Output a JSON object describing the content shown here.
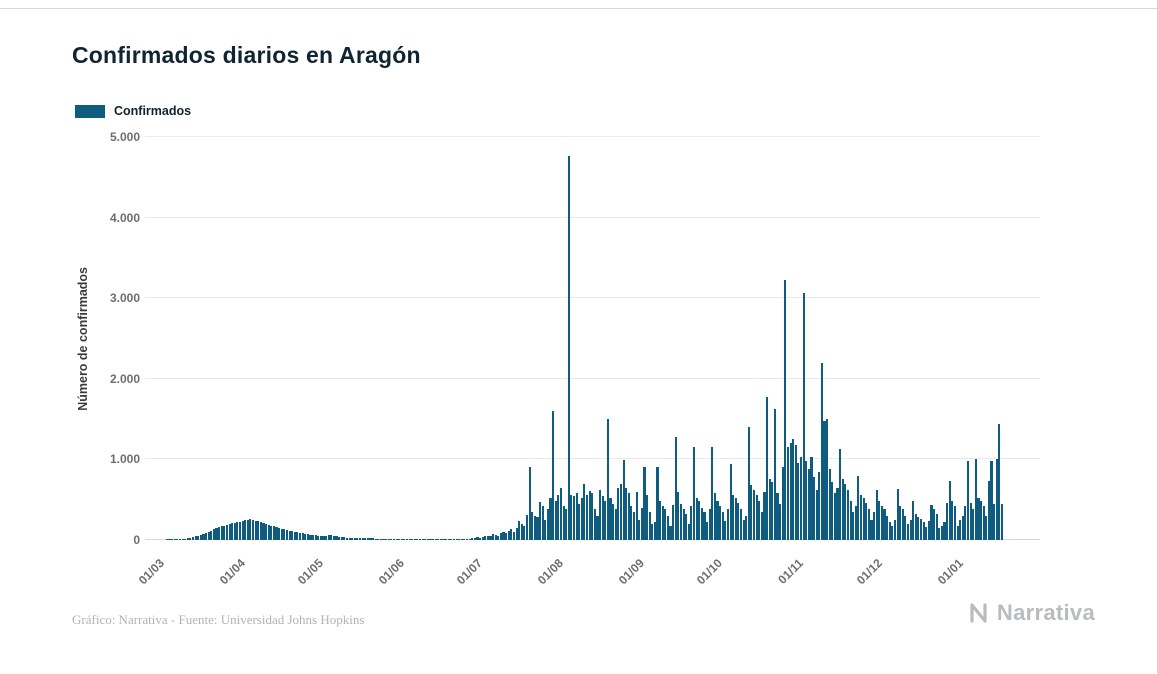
{
  "page": {
    "title": "Confirmados diarios en Aragón",
    "credit": "Gráfico: Narrativa - Fuente: Universidad Johns Hopkins",
    "brand": "Narrativa"
  },
  "legend": {
    "label": "Confirmados",
    "color": "#0e5c80"
  },
  "chart_data": {
    "type": "bar",
    "title": "Confirmados diarios en Aragón",
    "xlabel": "",
    "ylabel": "Número de confirmados",
    "ylim": [
      0,
      5000
    ],
    "grid": "horizontal",
    "legend_position": "top-left",
    "ytick_labels": [
      "0",
      "1.000",
      "2.000",
      "3.000",
      "4.000",
      "5.000"
    ],
    "xtick_labels": [
      "01/03",
      "01/04",
      "01/05",
      "01/06",
      "01/07",
      "01/08",
      "01/09",
      "01/10",
      "01/11",
      "01/12",
      "01/01"
    ],
    "xtick_positions": [
      5,
      36,
      66,
      97,
      127,
      158,
      189,
      219,
      250,
      280,
      311
    ],
    "x_start_date": "25/02",
    "x_unit": "day",
    "series": [
      {
        "name": "Confirmados",
        "color": "#0e5c80",
        "values": [
          0,
          0,
          0,
          0,
          0,
          0,
          0,
          0,
          1,
          2,
          3,
          5,
          8,
          10,
          14,
          18,
          24,
          30,
          38,
          46,
          56,
          66,
          78,
          90,
          104,
          118,
          132,
          146,
          158,
          168,
          178,
          188,
          198,
          206,
          214,
          220,
          228,
          236,
          244,
          250,
          255,
          248,
          240,
          232,
          222,
          212,
          200,
          190,
          180,
          170,
          160,
          150,
          142,
          134,
          126,
          118,
          110,
          102,
          96,
          90,
          84,
          78,
          72,
          68,
          64,
          60,
          56,
          52,
          48,
          46,
          58,
          64,
          52,
          44,
          40,
          36,
          34,
          30,
          28,
          26,
          24,
          22,
          20,
          24,
          30,
          26,
          22,
          20,
          18,
          16,
          15,
          14,
          13,
          12,
          11,
          10,
          10,
          9,
          8,
          10,
          12,
          9,
          7,
          6,
          8,
          11,
          14,
          12,
          9,
          7,
          6,
          9,
          12,
          15,
          12,
          9,
          7,
          10,
          14,
          18,
          15,
          11,
          9,
          13,
          18,
          24,
          30,
          34,
          30,
          38,
          48,
          44,
          56,
          72,
          64,
          52,
          84,
          104,
          92,
          116,
          132,
          96,
          148,
          240,
          200,
          170,
          310,
          900,
          350,
          300,
          280,
          470,
          420,
          250,
          380,
          520,
          1600,
          480,
          560,
          650,
          420,
          380,
          4770,
          560,
          540,
          580,
          450,
          520,
          700,
          560,
          610,
          580,
          380,
          300,
          620,
          550,
          480,
          1500,
          520,
          450,
          380,
          650,
          700,
          990,
          640,
          580,
          420,
          350,
          600,
          250,
          400,
          900,
          560,
          350,
          200,
          220,
          910,
          480,
          420,
          390,
          300,
          180,
          430,
          1280,
          600,
          450,
          380,
          320,
          200,
          420,
          1150,
          520,
          480,
          400,
          350,
          220,
          390,
          1150,
          580,
          480,
          420,
          350,
          240,
          380,
          940,
          560,
          520,
          460,
          380,
          250,
          300,
          1400,
          680,
          620,
          560,
          480,
          350,
          600,
          1780,
          760,
          720,
          1620,
          580,
          450,
          900,
          3220,
          1150,
          1200,
          1250,
          1180,
          950,
          1030,
          3060,
          980,
          880,
          1030,
          780,
          620,
          850,
          2200,
          1480,
          1500,
          880,
          720,
          580,
          650,
          1130,
          760,
          700,
          620,
          480,
          350,
          420,
          800,
          560,
          520,
          460,
          380,
          250,
          350,
          620,
          480,
          420,
          380,
          300,
          220,
          180,
          250,
          630,
          420,
          380,
          300,
          200,
          250,
          480,
          320,
          280,
          260,
          220,
          160,
          240,
          440,
          380,
          320,
          150,
          180,
          220,
          460,
          730,
          480,
          420,
          180,
          250,
          300,
          420,
          980,
          460,
          380,
          1010,
          520,
          480,
          420,
          300,
          730,
          980,
          450,
          1010,
          1440,
          450,
          0,
          0,
          0,
          0,
          0,
          0,
          0,
          0,
          0,
          0,
          0,
          0,
          0,
          0
        ]
      }
    ]
  }
}
